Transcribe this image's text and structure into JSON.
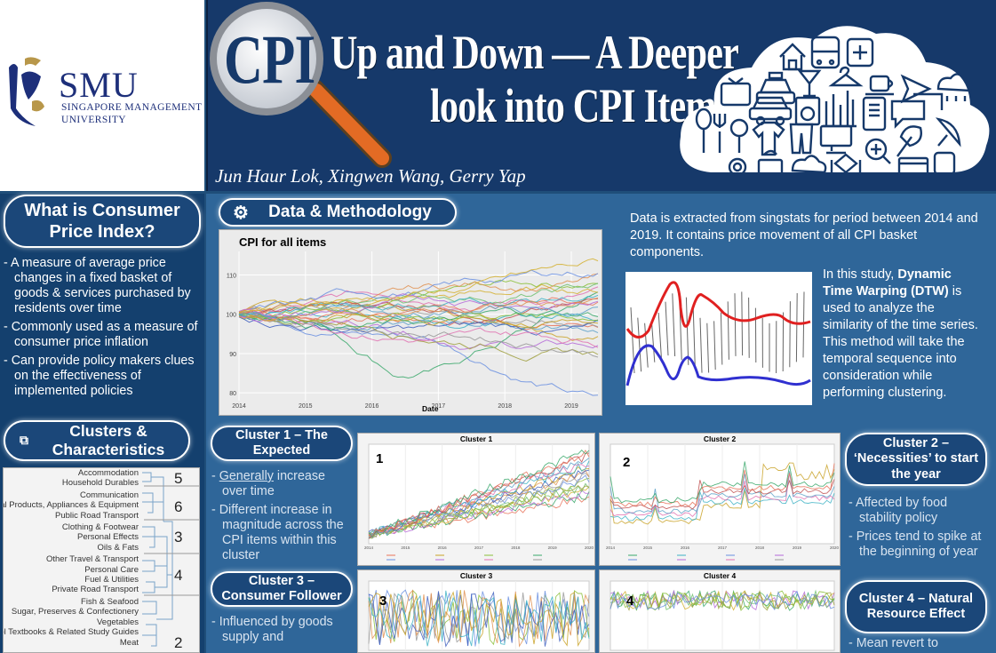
{
  "logo": {
    "name": "SMU",
    "subtitle_1": "SINGAPORE MANAGEMENT",
    "subtitle_2": "UNIVERSITY"
  },
  "banner": {
    "cpi": "CPI",
    "title_1": "Up and Down — A Deeper",
    "title_2": "look into CPI Items",
    "authors": "Jun Haur Lok, Xingwen Wang, Gerry Yap"
  },
  "what_is": {
    "heading": "What is Consumer Price Index?",
    "bullets": [
      "- A measure of average price changes in a fixed basket of goods & services purchased by residents over time",
      "- Commonly used as a measure of consumer price inflation",
      "- Can provide policy makers clues on the effectiveness of implemented policies"
    ]
  },
  "clusters_heading": "Clusters & Characteristics",
  "dendrogram": {
    "groups": [
      {
        "num": "5",
        "items": [
          "Accommodation",
          "Household Durables"
        ]
      },
      {
        "num": "6",
        "items": [
          "Communication",
          "Medical Products, Appliances & Equipment",
          "Public Road Transport"
        ]
      },
      {
        "num": "3",
        "items": [
          "Clothing & Footwear",
          "Personal Effects",
          "Oils & Fats"
        ]
      },
      {
        "num": "4",
        "items": [
          "Other Travel & Transport",
          "Personal Care",
          "Fuel & Utilities",
          "Private Road Transport"
        ]
      },
      {
        "num": "2",
        "items": [
          "Fish & Seafood",
          "Sugar, Preserves & Confectionery",
          "Vegetables",
          "School Textbooks & Related Study Guides",
          "Meat"
        ]
      }
    ]
  },
  "methodology": {
    "heading": "Data & Methodology",
    "data_text": "Data is extracted from singstats for period between 2014 and 2019. It contains price movement of all CPI basket components.",
    "dtw_pre": "In this study, ",
    "dtw_bold": "Dynamic Time Warping (DTW)",
    "dtw_post": " is used to analyze the similarity of the time series. This method will take the temporal sequence into consideration while performing clustering."
  },
  "main_chart": {
    "title": "CPI for all items",
    "xlabel": "Date",
    "yticks": [
      "110",
      "100",
      "90",
      "80"
    ],
    "xticks": [
      "2014",
      "2015",
      "2016",
      "2017",
      "2018",
      "2019"
    ]
  },
  "cluster1": {
    "heading": "Cluster 1 – The Expected",
    "bullets": [
      "Generally increase over time",
      "Different increase in magnitude across the CPI items within this cluster"
    ],
    "underlined": "Generally"
  },
  "cluster2": {
    "heading": "Cluster 2 – ‘Necessities’ to start the year",
    "bullets": [
      "Affected by food stability policy",
      "Prices tend to spike at the beginning of year"
    ]
  },
  "cluster3": {
    "heading": "Cluster 3 – Consumer Follower",
    "bullets": [
      "Influenced by goods supply and"
    ]
  },
  "cluster4": {
    "heading": "Cluster 4 – Natural Resource Effect",
    "bullets": [
      "Mean revert to"
    ]
  },
  "mini_charts": [
    {
      "title": "Cluster 1",
      "num": "1"
    },
    {
      "title": "Cluster 2",
      "num": "2"
    },
    {
      "title": "Cluster 3",
      "num": "3"
    },
    {
      "title": "Cluster 4",
      "num": "4"
    }
  ],
  "mini_xticks": [
    "2014",
    "2015",
    "2016",
    "2017",
    "2018",
    "2019",
    "2020"
  ],
  "colors": {
    "navy": "#16396a",
    "panel": "#2f6699",
    "accent_red": "#e02020",
    "accent_blue": "#3030d0"
  },
  "icons": [
    "house-icon",
    "bus-icon",
    "medical-icon",
    "taxi-icon",
    "cocktail-icon",
    "hanger-icon",
    "coffee-icon",
    "plane-icon",
    "cloud-rain-icon",
    "tv-icon",
    "car-icon",
    "washing-machine-icon",
    "chart-icon",
    "phone-icon",
    "chat-icon",
    "spoon-icon",
    "microphone-icon",
    "sofa-icon",
    "shirt-icon",
    "trousers-icon",
    "monitor-icon",
    "leaf-icon",
    "satellite-icon",
    "gear-icon",
    "cake-icon",
    "cloud-icon",
    "handshake-icon",
    "search-plus-icon",
    "card-icon",
    "train-icon"
  ]
}
